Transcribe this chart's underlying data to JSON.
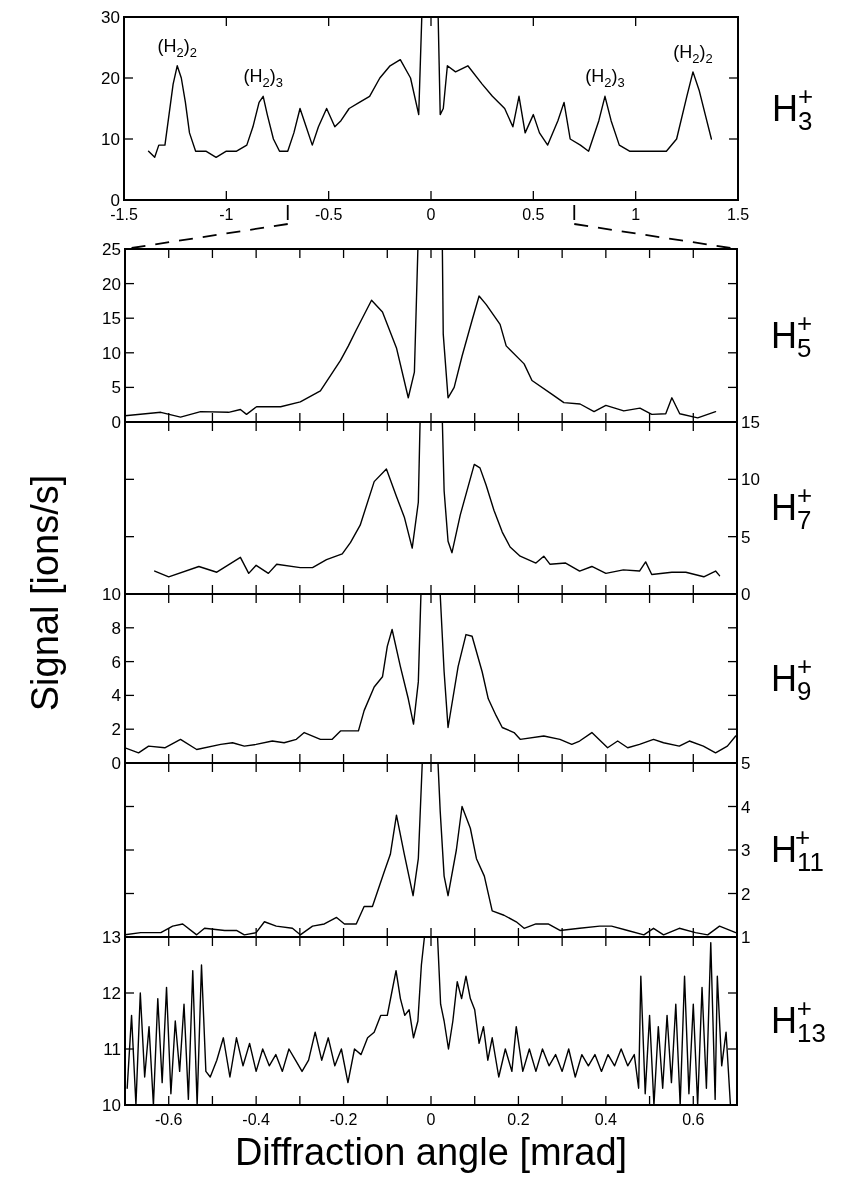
{
  "chart_data": [
    {
      "type": "line",
      "xlim": [
        -1.5,
        1.5
      ],
      "xticks": [
        -1.5,
        -1,
        -0.5,
        0,
        0.5,
        1,
        1.5
      ],
      "ylim": [
        0,
        30
      ],
      "yticks": [
        0,
        10,
        20,
        30
      ],
      "annotations": [
        "H$_{3}$$^{+}$",
        {
          "text": "(H$_{2}$)$_{2}$",
          "x": -1.24,
          "y": 22
        },
        {
          "text": "(H$_{2}$)$_{3}$",
          "x": -0.82,
          "y": 17
        },
        {
          "text": "(H$_{2}$)$_{3}$",
          "x": 0.85,
          "y": 17
        },
        {
          "text": "(H$_{2}$)$_{2}$",
          "x": 1.28,
          "y": 21
        }
      ],
      "series": [
        {
          "color": "#000000",
          "x": [
            -1.38,
            -1.35,
            -1.33,
            -1.3,
            -1.28,
            -1.26,
            -1.24,
            -1.22,
            -1.2,
            -1.18,
            -1.15,
            -1.1,
            -1.05,
            -1,
            -0.95,
            -0.9,
            -0.87,
            -0.84,
            -0.82,
            -0.8,
            -0.77,
            -0.74,
            -0.7,
            -0.67,
            -0.64,
            -0.61,
            -0.58,
            -0.55,
            -0.51,
            -0.47,
            -0.44,
            -0.4,
            -0.35,
            -0.3,
            -0.25,
            -0.2,
            -0.15,
            -0.1,
            -0.06,
            -0.045,
            0.035,
            0.045,
            0.06,
            0.08,
            0.12,
            0.18,
            0.25,
            0.3,
            0.36,
            0.4,
            0.43,
            0.46,
            0.5,
            0.53,
            0.57,
            0.62,
            0.65,
            0.68,
            0.73,
            0.77,
            0.82,
            0.85,
            0.88,
            0.92,
            0.97,
            1.05,
            1.15,
            1.2,
            1.25,
            1.28,
            1.31,
            1.34,
            1.37
          ],
          "values": [
            8,
            7,
            9,
            9,
            14,
            19,
            22,
            20,
            16,
            11,
            8,
            8,
            7,
            8,
            8,
            9,
            12,
            16,
            17,
            14,
            10,
            8,
            8,
            11,
            15,
            12,
            9,
            12,
            15,
            12,
            13,
            15,
            16,
            17,
            20,
            22,
            23,
            20,
            14,
            30,
            30,
            14,
            15,
            22,
            21,
            22,
            19,
            17,
            15,
            12,
            17,
            11,
            14,
            11,
            9,
            13,
            16,
            10,
            9,
            8,
            13,
            17,
            13,
            9,
            8,
            8,
            8,
            10,
            17,
            21,
            18,
            14,
            10
          ]
        }
      ]
    },
    {
      "type": "line",
      "annotations": [
        "H$_{5}$$^{+}$"
      ],
      "xlim": [
        -0.7,
        0.7
      ],
      "xticks": [
        -0.6,
        {
          "value": -0.5,
          "label": null
        },
        -0.4,
        {
          "value": -0.3,
          "label": null
        },
        -0.2,
        {
          "value": -0.1,
          "label": null
        },
        0,
        {
          "value": 0.1,
          "label": null
        },
        0.2,
        {
          "value": 0.3,
          "label": null
        },
        0.4,
        {
          "value": 0.5,
          "label": null
        },
        0.6
      ],
      "ylim": [
        0,
        25
      ],
      "yticks": [
        0,
        5,
        10,
        15,
        20,
        25
      ],
      "tick_labels": "y",
      "series": [
        {
          "color": "#000000",
          "x": [
            -0.7,
            -0.618,
            -0.573,
            -0.527,
            -0.463,
            -0.436,
            -0.422,
            -0.399,
            -0.344,
            -0.299,
            -0.253,
            -0.207,
            -0.189,
            -0.171,
            -0.136,
            -0.111,
            -0.079,
            -0.052,
            -0.038,
            -0.03,
            0.026,
            0.028,
            0.039,
            0.053,
            0.071,
            0.094,
            0.11,
            0.126,
            0.158,
            0.172,
            0.213,
            0.231,
            0.277,
            0.304,
            0.341,
            0.373,
            0.4,
            0.441,
            0.478,
            0.505,
            0.537,
            0.551,
            0.569,
            0.61,
            0.651
          ],
          "values": [
            0.9,
            1.4,
            0.7,
            1.5,
            1.4,
            1.8,
            1.1,
            2.2,
            2.2,
            2.9,
            4.5,
            8.9,
            11,
            13.3,
            17.6,
            15.9,
            10.7,
            3.5,
            7.2,
            25,
            25,
            12.7,
            3.5,
            5,
            9.5,
            14.7,
            18.2,
            17,
            14.1,
            11,
            8.4,
            6,
            4,
            2.8,
            2.6,
            1.5,
            2.4,
            1.6,
            2,
            1.1,
            1.2,
            3.5,
            1.2,
            0.6,
            1.5
          ]
        }
      ]
    },
    {
      "type": "line",
      "annotations": [
        "H$_{7}$$^{+}$"
      ],
      "ylabel": "Signal [ions/s]",
      "xlim": [
        -0.7,
        0.7
      ],
      "xticks": [
        -0.6,
        {
          "value": -0.5,
          "label": null
        },
        -0.4,
        {
          "value": -0.3,
          "label": null
        },
        -0.2,
        {
          "value": -0.1,
          "label": null
        },
        0,
        {
          "value": 0.1,
          "label": null
        },
        0.2,
        {
          "value": 0.3,
          "label": null
        },
        0.4,
        {
          "value": 0.5,
          "label": null
        },
        0.6
      ],
      "y2lim": [
        0,
        15
      ],
      "y2ticks": [
        0,
        5,
        10,
        15
      ],
      "tick_labels": "y",
      "series": [
        {
          "color": "#000000",
          "axis": "y2",
          "x": [
            -0.632,
            -0.6,
            -0.531,
            -0.49,
            -0.436,
            -0.417,
            -0.4,
            -0.372,
            -0.353,
            -0.299,
            -0.271,
            -0.239,
            -0.203,
            -0.184,
            -0.162,
            -0.13,
            -0.102,
            -0.079,
            -0.061,
            -0.043,
            -0.029,
            -0.025,
            0.026,
            0.03,
            0.039,
            0.048,
            0.067,
            0.099,
            0.112,
            0.126,
            0.144,
            0.163,
            0.181,
            0.204,
            0.24,
            0.258,
            0.272,
            0.308,
            0.34,
            0.368,
            0.4,
            0.44,
            0.477,
            0.491,
            0.505,
            0.551,
            0.583,
            0.624,
            0.651,
            0.66
          ],
          "values": [
            2,
            1.5,
            2.4,
            1.9,
            3.2,
            1.8,
            2.5,
            1.8,
            2.6,
            2.3,
            2.3,
            3,
            3.5,
            4.5,
            6,
            9.8,
            10.9,
            8.5,
            6.7,
            4,
            8,
            15,
            15,
            9,
            4.6,
            3.6,
            6.9,
            11.3,
            11,
            9.5,
            7.3,
            5.4,
            4.1,
            3.3,
            2.7,
            3.3,
            2.6,
            2.7,
            2,
            2.4,
            1.8,
            2.1,
            2,
            2.8,
            1.7,
            1.9,
            1.9,
            1.5,
            2,
            1.6
          ]
        }
      ]
    },
    {
      "type": "line",
      "annotations": [
        "H$_{9}$$^{+}$"
      ],
      "xlim": [
        -0.7,
        0.7
      ],
      "xticks": [
        -0.6,
        {
          "value": -0.5,
          "label": null
        },
        -0.4,
        {
          "value": -0.3,
          "label": null
        },
        -0.2,
        {
          "value": -0.1,
          "label": null
        },
        0,
        {
          "value": 0.1,
          "label": null
        },
        0.2,
        {
          "value": 0.3,
          "label": null
        },
        0.4,
        {
          "value": 0.5,
          "label": null
        },
        0.6
      ],
      "ylim": [
        0,
        10
      ],
      "yticks": [
        0,
        2,
        4,
        6,
        8,
        10
      ],
      "tick_labels": "y",
      "series": [
        {
          "color": "#000000",
          "x": [
            -0.7,
            -0.669,
            -0.646,
            -0.609,
            -0.573,
            -0.536,
            -0.481,
            -0.454,
            -0.427,
            -0.4,
            -0.363,
            -0.336,
            -0.308,
            -0.29,
            -0.253,
            -0.226,
            -0.207,
            -0.166,
            -0.153,
            -0.13,
            -0.111,
            -0.1,
            -0.089,
            -0.07,
            -0.052,
            -0.04,
            -0.029,
            -0.023,
            0.021,
            0.03,
            0.039,
            0.062,
            0.08,
            0.094,
            0.117,
            0.131,
            0.149,
            0.163,
            0.19,
            0.204,
            0.258,
            0.295,
            0.322,
            0.34,
            0.368,
            0.404,
            0.427,
            0.45,
            0.477,
            0.509,
            0.532,
            0.568,
            0.591,
            0.623,
            0.651,
            0.678,
            0.697
          ],
          "values": [
            0.9,
            0.6,
            1,
            0.9,
            1.4,
            0.8,
            1.1,
            1.2,
            1,
            1.1,
            1.3,
            1.2,
            1.4,
            1.8,
            1.4,
            1.4,
            1.9,
            1.9,
            3.1,
            4.5,
            5.1,
            6.9,
            7.9,
            5.7,
            3.8,
            2.3,
            4.8,
            10,
            10,
            5.4,
            2.1,
            5.7,
            7.6,
            7.5,
            5.4,
            3.8,
            2.8,
            2.1,
            1.8,
            1.4,
            1.6,
            1.4,
            1.1,
            1.3,
            1.8,
            0.9,
            1.3,
            0.9,
            1.1,
            1.4,
            1.2,
            1,
            1.3,
            1,
            0.6,
            1,
            1.6
          ]
        }
      ]
    },
    {
      "type": "line",
      "annotations": [
        "H$_{11}$$^{+}$"
      ],
      "xlim": [
        -0.7,
        0.7
      ],
      "xticks": [
        -0.6,
        {
          "value": -0.5,
          "label": null
        },
        -0.4,
        {
          "value": -0.3,
          "label": null
        },
        -0.2,
        {
          "value": -0.1,
          "label": null
        },
        0,
        {
          "value": 0.1,
          "label": null
        },
        0.2,
        {
          "value": 0.3,
          "label": null
        },
        0.4,
        {
          "value": 0.5,
          "label": null
        },
        0.6
      ],
      "y2lim": [
        1,
        5
      ],
      "y2ticks": [
        1,
        2,
        3,
        4,
        5
      ],
      "tick_labels": "y",
      "series": [
        {
          "color": "#000000",
          "axis": "y2",
          "x": [
            -0.7,
            -0.664,
            -0.618,
            -0.591,
            -0.568,
            -0.536,
            -0.518,
            -0.472,
            -0.445,
            -0.427,
            -0.4,
            -0.381,
            -0.354,
            -0.317,
            -0.299,
            -0.271,
            -0.244,
            -0.216,
            -0.198,
            -0.171,
            -0.153,
            -0.134,
            -0.107,
            -0.093,
            -0.079,
            -0.061,
            -0.041,
            -0.029,
            -0.02,
            0.016,
            0.021,
            0.03,
            0.039,
            0.058,
            0.071,
            0.09,
            0.104,
            0.122,
            0.14,
            0.167,
            0.195,
            0.213,
            0.24,
            0.268,
            0.295,
            0.34,
            0.386,
            0.413,
            0.45,
            0.487,
            0.509,
            0.532,
            0.568,
            0.605,
            0.633,
            0.66,
            0.697
          ],
          "values": [
            1.05,
            1.1,
            1.1,
            1.25,
            1.3,
            1.05,
            1.2,
            1.15,
            1.15,
            1.05,
            1.1,
            1.35,
            1.25,
            1.2,
            1.05,
            1.25,
            1.3,
            1.45,
            1.3,
            1.3,
            1.7,
            1.7,
            2.5,
            2.9,
            3.8,
            2.9,
            1.95,
            2.8,
            5,
            5,
            3.9,
            2.4,
            1.95,
            3,
            4,
            3.5,
            2.8,
            2.4,
            1.6,
            1.5,
            1.35,
            1.2,
            1.3,
            1.3,
            1.15,
            1.2,
            1.25,
            1.25,
            1.15,
            1.05,
            1.2,
            1.05,
            1.2,
            1.1,
            1.05,
            1.25,
            1.1
          ]
        }
      ]
    },
    {
      "type": "line",
      "annotations": [
        "H$_{13}$$^{+}$"
      ],
      "xlabel": "Diffraction angle [mrad]",
      "xlim": [
        -0.7,
        0.7
      ],
      "xticks": [
        -0.6,
        {
          "value": -0.5,
          "label": null
        },
        -0.4,
        {
          "value": -0.3,
          "label": null
        },
        -0.2,
        {
          "value": -0.1,
          "label": null
        },
        0,
        {
          "value": 0.1,
          "label": null
        },
        0.2,
        {
          "value": 0.3,
          "label": null
        },
        0.4,
        {
          "value": 0.5,
          "label": null
        },
        0.6
      ],
      "ylim": [
        10,
        13
      ],
      "yticks": [
        10,
        11,
        12,
        13
      ],
      "series": [
        {
          "color": "#000000",
          "x": [
            -0.695,
            -0.685,
            -0.675,
            -0.665,
            -0.655,
            -0.645,
            -0.635,
            -0.625,
            -0.615,
            -0.605,
            -0.595,
            -0.585,
            -0.575,
            -0.565,
            -0.555,
            -0.545,
            -0.535,
            -0.525,
            -0.515,
            -0.505,
            -0.49,
            -0.475,
            -0.46,
            -0.445,
            -0.43,
            -0.415,
            -0.4,
            -0.385,
            -0.37,
            -0.355,
            -0.34,
            -0.325,
            -0.31,
            -0.295,
            -0.28,
            -0.265,
            -0.25,
            -0.235,
            -0.22,
            -0.205,
            -0.19,
            -0.175,
            -0.16,
            -0.145,
            -0.13,
            -0.115,
            -0.1,
            -0.09,
            -0.08,
            -0.07,
            -0.06,
            -0.05,
            -0.04,
            -0.03,
            -0.022,
            -0.015,
            0.015,
            0.022,
            0.03,
            0.04,
            0.05,
            0.06,
            0.07,
            0.08,
            0.09,
            0.1,
            0.11,
            0.12,
            0.13,
            0.14,
            0.155,
            0.17,
            0.185,
            0.195,
            0.21,
            0.225,
            0.24,
            0.255,
            0.27,
            0.285,
            0.3,
            0.315,
            0.33,
            0.345,
            0.36,
            0.375,
            0.39,
            0.405,
            0.42,
            0.435,
            0.45,
            0.465,
            0.475,
            0.48,
            0.49,
            0.5,
            0.51,
            0.52,
            0.53,
            0.54,
            0.55,
            0.56,
            0.57,
            0.58,
            0.59,
            0.6,
            0.61,
            0.62,
            0.63,
            0.64,
            0.65,
            0.655,
            0.665,
            0.675,
            0.685
          ],
          "values": [
            10.3,
            11.6,
            10,
            12,
            10.5,
            11.4,
            10,
            11.9,
            10.4,
            12.1,
            10.2,
            11.5,
            10.6,
            11.8,
            10.1,
            12.4,
            10,
            12.5,
            10.6,
            10.5,
            10.8,
            11.2,
            10.5,
            11.2,
            10.7,
            11.1,
            10.6,
            11,
            10.7,
            10.9,
            10.6,
            11,
            10.8,
            10.6,
            10.8,
            11.3,
            10.8,
            11.2,
            10.7,
            11,
            10.4,
            11,
            10.9,
            11.2,
            11.3,
            11.6,
            11.6,
            12,
            12.4,
            11.9,
            11.6,
            11.7,
            11.2,
            11.5,
            12.5,
            13,
            13,
            11.8,
            11.5,
            11,
            11.5,
            12.2,
            11.9,
            12.3,
            11.9,
            11.7,
            11.1,
            11.4,
            10.8,
            11.2,
            10.5,
            11,
            10.6,
            11.4,
            10.6,
            11,
            10.6,
            11,
            10.7,
            10.9,
            10.6,
            11,
            10.5,
            10.9,
            10.7,
            10.9,
            10.6,
            10.9,
            10.7,
            11,
            10.7,
            10.9,
            10.3,
            12.3,
            10.2,
            11.6,
            10,
            11.4,
            10.3,
            11.6,
            10.4,
            11.8,
            10,
            12.3,
            10.2,
            11.8,
            10,
            12.1,
            10.3,
            12.9,
            10.1,
            12.3,
            10.7,
            11.3,
            10
          ]
        }
      ]
    }
  ]
}
